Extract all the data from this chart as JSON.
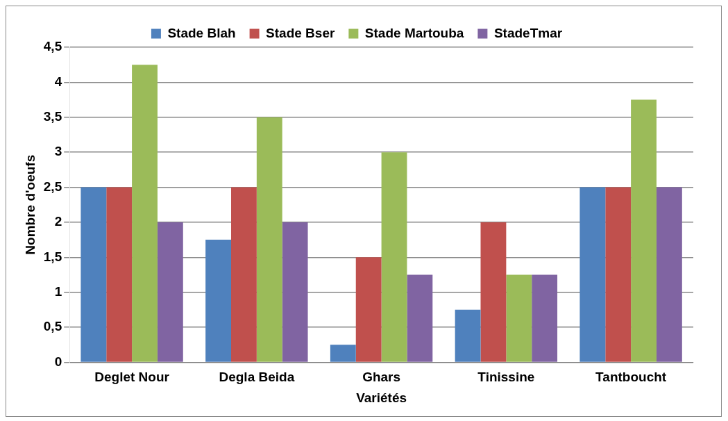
{
  "chart_data": {
    "type": "bar",
    "xlabel": "Variétés",
    "ylabel": "Nombre d'oeufs",
    "categories": [
      "Deglet Nour",
      "Degla Beida",
      "Ghars",
      "Tinissine",
      "Tantboucht"
    ],
    "series": [
      {
        "name": "Stade Blah",
        "color": "#4f81bd",
        "values": [
          2.5,
          1.75,
          0.25,
          0.75,
          2.5
        ]
      },
      {
        "name": "Stade Bser",
        "color": "#c0504d",
        "values": [
          2.5,
          2.5,
          1.5,
          2,
          2.5
        ]
      },
      {
        "name": "Stade Martouba",
        "color": "#9bbb59",
        "values": [
          4.25,
          3.5,
          3,
          1.25,
          3.75
        ]
      },
      {
        "name": "StadeTmar",
        "color": "#8064a2",
        "values": [
          2,
          2,
          1.25,
          1.25,
          2.5
        ]
      }
    ],
    "ylim": [
      0,
      4.5
    ],
    "yticks": [
      0,
      {
        "value": 0.5,
        "label": "0,5"
      },
      1,
      {
        "value": 1.5,
        "label": "1,5"
      },
      2,
      {
        "value": 2.5,
        "label": "2,5"
      },
      3,
      {
        "value": 3.5,
        "label": "3,5"
      },
      4,
      {
        "value": 4.5,
        "label": "4,5"
      }
    ],
    "grid": "y",
    "legend": "top"
  }
}
